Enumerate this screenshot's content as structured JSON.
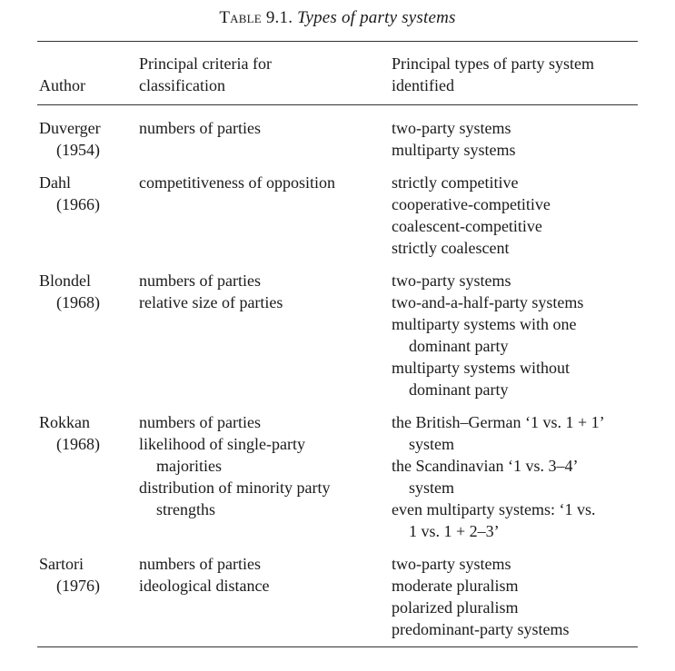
{
  "caption": {
    "label": "Table 9.1.",
    "title": "Types of party systems"
  },
  "headers": {
    "author": "Author",
    "criteria": [
      "Principal criteria for",
      "classification"
    ],
    "types": [
      "Principal types of party system",
      "identified"
    ]
  },
  "rows": [
    {
      "author": "Duverger",
      "year": "(1954)",
      "criteria": [
        {
          "text": "numbers of parties",
          "indent": false
        }
      ],
      "types": [
        {
          "text": "two-party systems",
          "indent": false
        },
        {
          "text": "multiparty systems",
          "indent": false
        }
      ]
    },
    {
      "author": "Dahl",
      "year": "(1966)",
      "criteria": [
        {
          "text": "competitiveness of opposition",
          "indent": false
        }
      ],
      "types": [
        {
          "text": "strictly competitive",
          "indent": false
        },
        {
          "text": "cooperative-competitive",
          "indent": false
        },
        {
          "text": "coalescent-competitive",
          "indent": false
        },
        {
          "text": "strictly coalescent",
          "indent": false
        }
      ]
    },
    {
      "author": "Blondel",
      "year": "(1968)",
      "criteria": [
        {
          "text": "numbers of parties",
          "indent": false
        },
        {
          "text": "relative size of parties",
          "indent": false
        }
      ],
      "types": [
        {
          "text": "two-party systems",
          "indent": false
        },
        {
          "text": "two-and-a-half-party systems",
          "indent": false
        },
        {
          "text": "multiparty systems with one",
          "indent": false
        },
        {
          "text": "dominant party",
          "indent": true
        },
        {
          "text": "multiparty systems without",
          "indent": false
        },
        {
          "text": "dominant party",
          "indent": true
        }
      ]
    },
    {
      "author": "Rokkan",
      "year": "(1968)",
      "criteria": [
        {
          "text": "numbers of parties",
          "indent": false
        },
        {
          "text": "likelihood of single-party",
          "indent": false
        },
        {
          "text": "majorities",
          "indent": true
        },
        {
          "text": "distribution of minority party",
          "indent": false
        },
        {
          "text": "strengths",
          "indent": true
        }
      ],
      "types": [
        {
          "text": "the British–German ‘1 vs. 1 + 1’",
          "indent": false
        },
        {
          "text": "system",
          "indent": true
        },
        {
          "text": "the Scandinavian ‘1 vs. 3–4’",
          "indent": false
        },
        {
          "text": "system",
          "indent": true
        },
        {
          "text": "even multiparty systems: ‘1 vs.",
          "indent": false
        },
        {
          "text": "1 vs. 1 + 2–3’",
          "indent": true
        }
      ]
    },
    {
      "author": "Sartori",
      "year": "(1976)",
      "criteria": [
        {
          "text": "numbers of parties",
          "indent": false
        },
        {
          "text": "ideological distance",
          "indent": false
        }
      ],
      "types": [
        {
          "text": "two-party systems",
          "indent": false
        },
        {
          "text": "moderate pluralism",
          "indent": false
        },
        {
          "text": "polarized pluralism",
          "indent": false
        },
        {
          "text": "predominant-party systems",
          "indent": false
        }
      ]
    }
  ]
}
